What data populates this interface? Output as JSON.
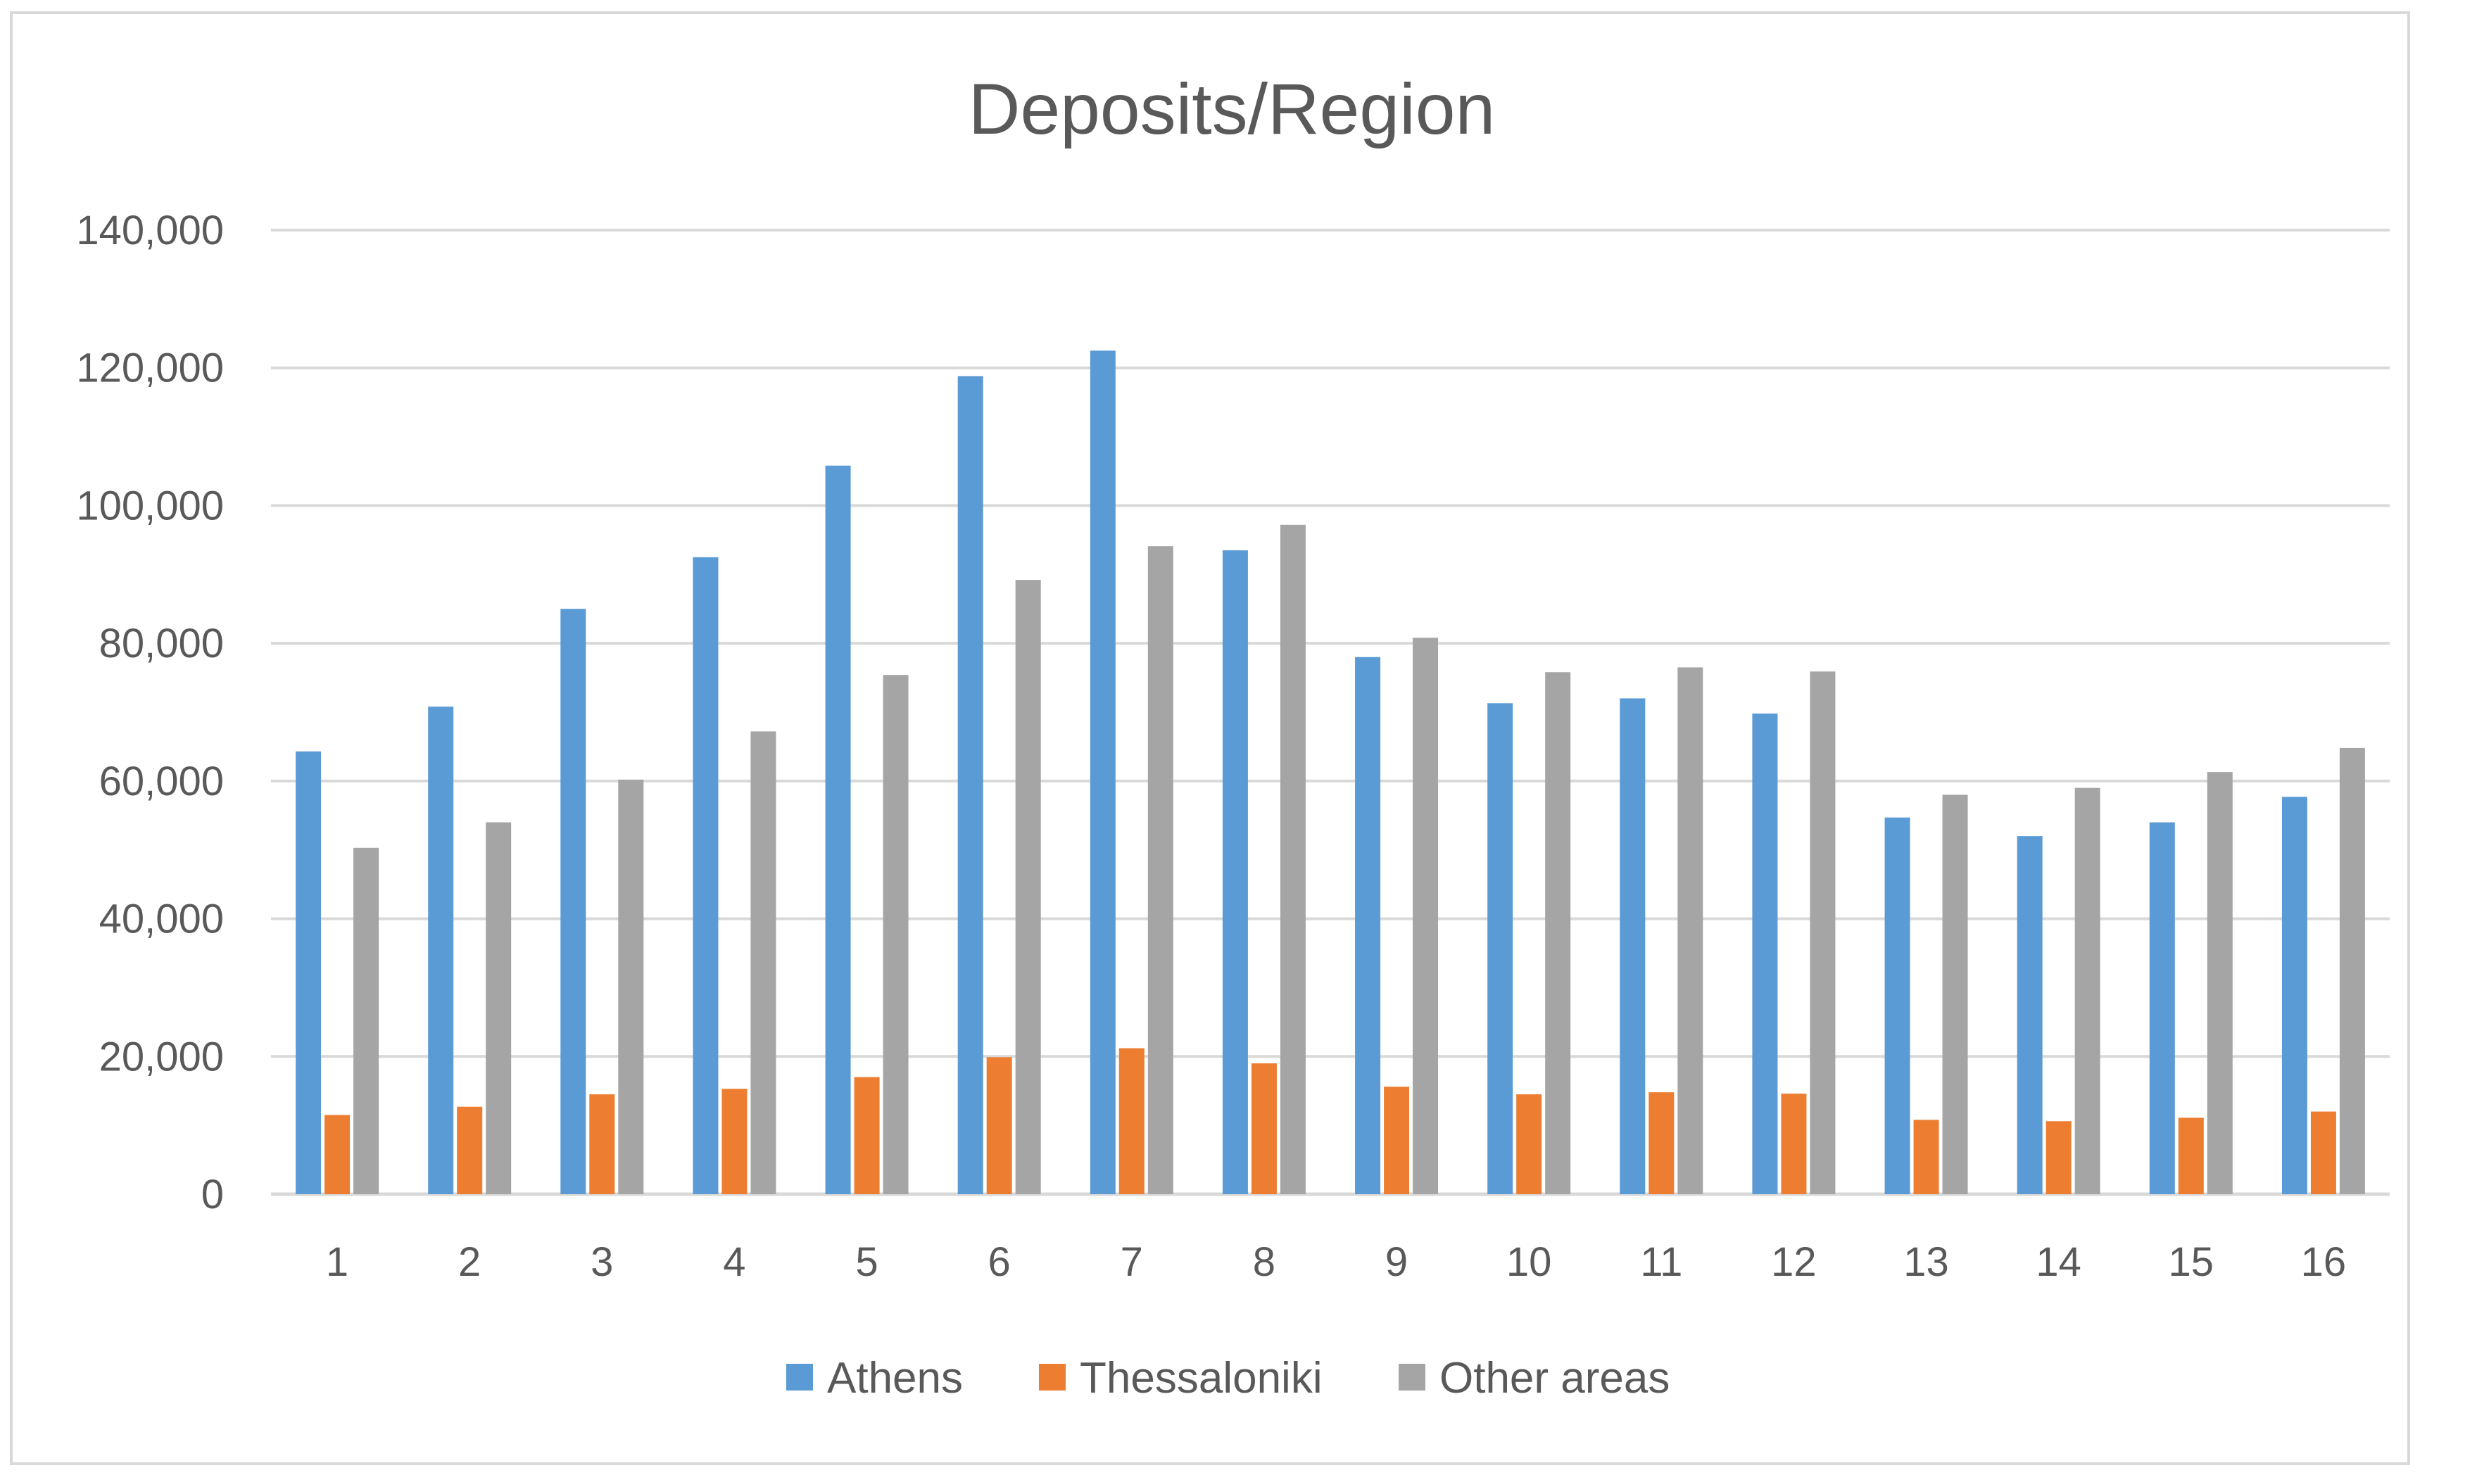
{
  "chart_data": {
    "type": "bar",
    "title": "Deposits/Region",
    "xlabel": "",
    "ylabel": "",
    "categories": [
      "1",
      "2",
      "3",
      "4",
      "5",
      "6",
      "7",
      "8",
      "9",
      "10",
      "11",
      "12",
      "13",
      "14",
      "15",
      "16"
    ],
    "ylim": [
      0,
      140000
    ],
    "yticks": [
      0,
      20000,
      40000,
      60000,
      80000,
      100000,
      120000,
      140000
    ],
    "ytick_labels": [
      "0",
      "20,000",
      "40,000",
      "60,000",
      "80,000",
      "100,000",
      "120,000",
      "140,000"
    ],
    "grid": true,
    "legend_position": "bottom",
    "series": [
      {
        "name": "Athens",
        "color": "#5b9bd5",
        "values": [
          64300,
          70800,
          85000,
          92500,
          105800,
          118800,
          122500,
          93500,
          78000,
          71300,
          72000,
          69800,
          54700,
          52000,
          54000,
          57700
        ]
      },
      {
        "name": "Thessaloniki",
        "color": "#ed7d31",
        "values": [
          11500,
          12700,
          14500,
          15300,
          17000,
          19900,
          21200,
          19000,
          15600,
          14500,
          14800,
          14600,
          10800,
          10600,
          11100,
          12000
        ]
      },
      {
        "name": "Other areas",
        "color": "#a5a5a5",
        "values": [
          50300,
          54000,
          60200,
          67200,
          75400,
          89200,
          94100,
          97200,
          80800,
          75800,
          76500,
          75900,
          58000,
          59000,
          61300,
          64800
        ]
      }
    ]
  }
}
